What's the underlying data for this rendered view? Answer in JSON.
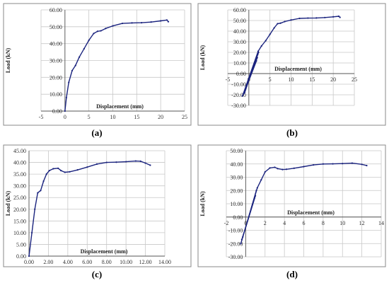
{
  "captions": [
    "(a)",
    "(b)",
    "(c)",
    "(d)"
  ],
  "chart_data": [
    {
      "type": "line",
      "caption": "(a)",
      "xlabel": "Displacement (mm)",
      "ylabel": "Load (kN)",
      "xlim": [
        -5,
        25
      ],
      "ylim": [
        0,
        60
      ],
      "xticks": [
        -5,
        0,
        5,
        10,
        15,
        20,
        25
      ],
      "xtick_labels": [
        "-5",
        "0",
        "5",
        "10",
        "15",
        "20",
        "25"
      ],
      "yticks": [
        0,
        10,
        20,
        30,
        40,
        50,
        60
      ],
      "ytick_labels": [
        "0.00",
        "10.00",
        "20.00",
        "30.00",
        "40.00",
        "50.00",
        "60.00"
      ],
      "grid": true,
      "series": [
        {
          "x": [
            0,
            0.3,
            0.8,
            1.5,
            2.2,
            3,
            4,
            5,
            6,
            6.8,
            7.5,
            8.5,
            10,
            12,
            14,
            16,
            18,
            20,
            21.3,
            21.6
          ],
          "y": [
            0,
            8,
            17,
            24,
            27,
            32,
            37,
            42,
            46,
            47.3,
            47.6,
            49,
            50.5,
            52,
            52.3,
            52.4,
            52.8,
            53.5,
            54,
            53
          ]
        }
      ]
    },
    {
      "type": "line",
      "caption": "(b)",
      "xlabel": "Displacement (mm)",
      "ylabel": "Load (kN)",
      "xlim": [
        -5,
        25
      ],
      "ylim": [
        -30,
        60
      ],
      "xticks": [
        -5,
        0,
        5,
        10,
        15,
        20,
        25
      ],
      "xtick_labels": [
        "-5",
        "0",
        "5",
        "10",
        "15",
        "20",
        "25"
      ],
      "yticks": [
        -30,
        -20,
        -10,
        0,
        10,
        20,
        30,
        40,
        50,
        60
      ],
      "ytick_labels": [
        "-30.00",
        "-20.00",
        "-10.00",
        "0.00",
        "10.00",
        "20.00",
        "30.00",
        "40.00",
        "50.00",
        "60.00"
      ],
      "grid": true,
      "series": [
        {
          "x": [
            -1.5,
            2.3,
            -1,
            2.1,
            -0.8,
            2,
            -1.2,
            1.8,
            -1.5,
            2.2,
            3,
            4,
            5,
            6,
            6.8,
            7.5,
            8.5,
            10,
            12,
            14,
            16,
            18,
            20,
            21.3,
            21.6
          ],
          "y": [
            -21,
            20,
            -18,
            18,
            -15,
            15,
            -19,
            12,
            -21,
            21,
            26,
            31,
            37,
            43,
            47,
            47.5,
            49,
            50.5,
            52,
            52.3,
            52.4,
            52.8,
            53.5,
            54,
            53
          ]
        }
      ]
    },
    {
      "type": "line",
      "caption": "(c)",
      "xlabel": "Displacement (mm)",
      "ylabel": "Load (kN)",
      "xlim": [
        0,
        14
      ],
      "ylim": [
        0,
        45
      ],
      "xticks": [
        0,
        2,
        4,
        6,
        8,
        10,
        12,
        14
      ],
      "xtick_labels": [
        "0.00",
        "2.00",
        "4.00",
        "6.00",
        "8.00",
        "10.00",
        "12.00",
        "14.00"
      ],
      "yticks": [
        0,
        5,
        10,
        15,
        20,
        25,
        30,
        35,
        40,
        45
      ],
      "ytick_labels": [
        "0.00",
        "5.00",
        "10.00",
        "15.00",
        "20.00",
        "25.00",
        "30.00",
        "35.00",
        "40.00",
        "45.00"
      ],
      "grid": true,
      "series": [
        {
          "x": [
            0,
            0.3,
            0.6,
            0.9,
            1.2,
            1.5,
            1.8,
            2.1,
            2.5,
            3,
            3.3,
            3.7,
            4.2,
            5,
            6,
            7,
            8,
            9,
            10,
            11,
            11.5,
            12,
            12.5
          ],
          "y": [
            0,
            10,
            20,
            27,
            28,
            32,
            35,
            36.5,
            37.3,
            37.5,
            36.5,
            35.8,
            36,
            36.8,
            38,
            39.3,
            40,
            40.1,
            40.3,
            40.6,
            40.5,
            39.7,
            38.8
          ]
        }
      ]
    },
    {
      "type": "line",
      "caption": "(d)",
      "xlabel": "Displacement (mm)",
      "ylabel": "Load (kN)",
      "xlim": [
        -2,
        14
      ],
      "ylim": [
        -30,
        50
      ],
      "xticks": [
        -2,
        0,
        2,
        4,
        6,
        8,
        10,
        12,
        14
      ],
      "xtick_labels": [
        "-2",
        "0",
        "2",
        "4",
        "6",
        "8",
        "10",
        "12",
        "14"
      ],
      "yticks": [
        -30,
        -20,
        -10,
        0,
        10,
        20,
        30,
        40,
        50
      ],
      "ytick_labels": [
        "-30.00",
        "-20.00",
        "-10.00",
        "0.00",
        "10.00",
        "20.00",
        "30.00",
        "40.00",
        "50.00"
      ],
      "grid": true,
      "series": [
        {
          "x": [
            -0.5,
            1.1,
            -0.3,
            1,
            -0.4,
            0.9,
            -0.5,
            1.2,
            1.6,
            2,
            2.5,
            3,
            3.3,
            3.8,
            4.2,
            5,
            6,
            7,
            8,
            9,
            10,
            11,
            12,
            12.5
          ],
          "y": [
            -20,
            20,
            -15,
            16,
            -17,
            14,
            -20,
            22,
            28,
            34,
            37,
            37.5,
            36.5,
            35.8,
            36,
            36.8,
            38,
            39.3,
            40,
            40.1,
            40.3,
            40.6,
            39.7,
            38.8
          ]
        }
      ]
    }
  ]
}
